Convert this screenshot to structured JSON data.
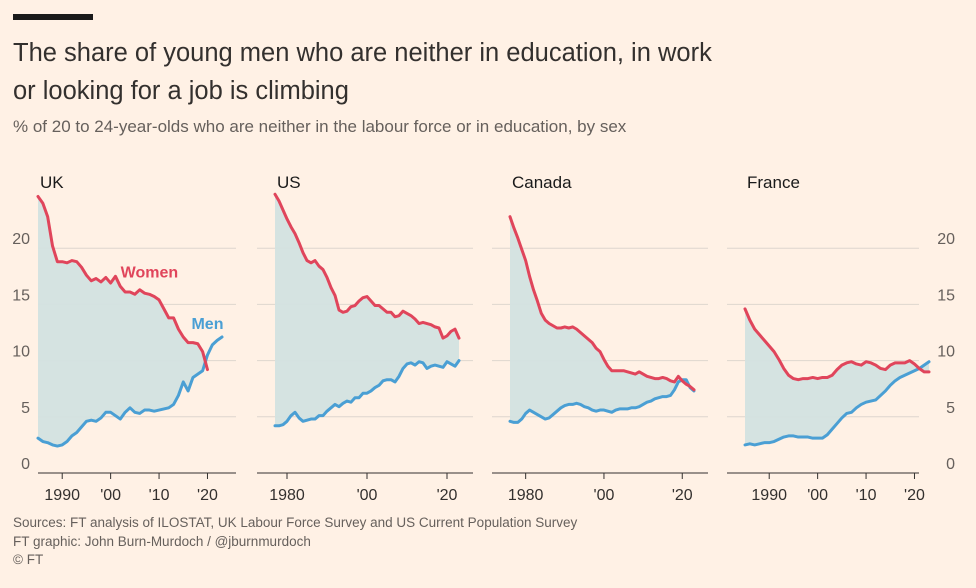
{
  "title_line1": "The share of young men who are neither in education, in work",
  "title_line2": "or looking for a job is climbing",
  "subtitle": "% of 20 to 24-year-olds who are neither in the labour force or in education, by sex",
  "footer": {
    "sources": "Sources: FT analysis of ILOSTAT, UK Labour Force Survey and US Current Population Survey",
    "credit": "FT graphic: John Burn-Murdoch / @jburnmurdoch",
    "copyright": "© FT"
  },
  "colors": {
    "women": "#E0455B",
    "men": "#4A9FD4",
    "fill": "#D3E2E0",
    "background": "#FFF1E5",
    "grid": "#DED6CE"
  },
  "chart_data": [
    {
      "type": "line",
      "title": "UK",
      "xlim": [
        1985,
        2023
      ],
      "ylim": [
        0,
        25
      ],
      "y_ticks": [
        0,
        5,
        10,
        15,
        20
      ],
      "y_tick_labels": [
        "0",
        "5",
        "10",
        "15",
        "20"
      ],
      "x_ticks": [
        1990,
        2000,
        2010,
        2020
      ],
      "x_tick_labels": [
        "1990",
        "'00",
        "'10",
        "'20"
      ],
      "annotations": [
        {
          "text": "Women",
          "series": "Women",
          "x": 2008,
          "y": 17.4
        },
        {
          "text": "Men",
          "series": "Men",
          "x": 2020,
          "y": 12.8
        }
      ],
      "series": [
        {
          "name": "Women",
          "x": [
            1985,
            1986,
            1987,
            1988,
            1989,
            1990,
            1991,
            1992,
            1993,
            1994,
            1995,
            1996,
            1997,
            1998,
            1999,
            2000,
            2001,
            2002,
            2003,
            2004,
            2005,
            2006,
            2007,
            2008,
            2009,
            2010,
            2011,
            2012,
            2013,
            2014,
            2015,
            2016,
            2017,
            2018,
            2019,
            2020
          ],
          "y": [
            24.6,
            24,
            22.8,
            20.2,
            18.8,
            18.8,
            18.7,
            18.9,
            18.8,
            18.3,
            17.6,
            17.1,
            17.3,
            17,
            17.4,
            16.9,
            17.5,
            16.6,
            16.1,
            16.1,
            15.9,
            16.3,
            16,
            15.9,
            15.7,
            15.4,
            14.6,
            13.8,
            13.8,
            12.8,
            12.1,
            11.6,
            11.6,
            11.5,
            10.8,
            9.2
          ]
        },
        {
          "name": "Men",
          "x": [
            1985,
            1986,
            1987,
            1988,
            1989,
            1990,
            1991,
            1992,
            1993,
            1994,
            1995,
            1996,
            1997,
            1998,
            1999,
            2000,
            2001,
            2002,
            2003,
            2004,
            2005,
            2006,
            2007,
            2008,
            2009,
            2010,
            2011,
            2012,
            2013,
            2014,
            2015,
            2016,
            2017,
            2018,
            2019,
            2020,
            2021,
            2022,
            2023
          ],
          "y": [
            3.1,
            2.8,
            2.7,
            2.5,
            2.4,
            2.5,
            2.8,
            3.3,
            3.6,
            4.1,
            4.6,
            4.7,
            4.6,
            4.9,
            5.4,
            5.4,
            5.1,
            4.8,
            5.4,
            5.8,
            5.4,
            5.3,
            5.6,
            5.6,
            5.5,
            5.6,
            5.7,
            5.8,
            6.1,
            6.9,
            8.1,
            7.3,
            8.5,
            8.8,
            9.1,
            10.5,
            11.4,
            11.8,
            12.1
          ]
        }
      ]
    },
    {
      "type": "line",
      "title": "US",
      "xlim": [
        1977,
        2023
      ],
      "ylim": [
        0,
        25
      ],
      "y_ticks": [
        0,
        5,
        10,
        15,
        20
      ],
      "x_ticks": [
        1980,
        2000,
        2020
      ],
      "x_tick_labels": [
        "1980",
        "'00",
        "'20"
      ],
      "series": [
        {
          "name": "Women",
          "x": [
            1977,
            1978,
            1979,
            1980,
            1981,
            1982,
            1983,
            1984,
            1985,
            1986,
            1987,
            1988,
            1989,
            1990,
            1991,
            1992,
            1993,
            1994,
            1995,
            1996,
            1997,
            1998,
            1999,
            2000,
            2001,
            2002,
            2003,
            2004,
            2005,
            2006,
            2007,
            2008,
            2009,
            2010,
            2011,
            2012,
            2013,
            2014,
            2015,
            2016,
            2017,
            2018,
            2019,
            2020,
            2021,
            2022,
            2023
          ],
          "y": [
            24.8,
            24.2,
            23.4,
            22.6,
            21.9,
            21.3,
            20.5,
            19.6,
            18.9,
            18.7,
            18.9,
            18.4,
            18.1,
            17.4,
            16.5,
            15.8,
            14.5,
            14.3,
            14.4,
            14.8,
            14.9,
            15.3,
            15.6,
            15.7,
            15.3,
            14.9,
            14.9,
            14.6,
            14.3,
            14.3,
            13.9,
            14,
            14.4,
            14.2,
            14,
            13.7,
            13.3,
            13.4,
            13.3,
            13.2,
            13,
            12.9,
            12,
            12.2,
            12.6,
            12.8,
            12
          ]
        },
        {
          "name": "Men",
          "x": [
            1977,
            1978,
            1979,
            1980,
            1981,
            1982,
            1983,
            1984,
            1985,
            1986,
            1987,
            1988,
            1989,
            1990,
            1991,
            1992,
            1993,
            1994,
            1995,
            1996,
            1997,
            1998,
            1999,
            2000,
            2001,
            2002,
            2003,
            2004,
            2005,
            2006,
            2007,
            2008,
            2009,
            2010,
            2011,
            2012,
            2013,
            2014,
            2015,
            2016,
            2017,
            2018,
            2019,
            2020,
            2021,
            2022,
            2023
          ],
          "y": [
            4.2,
            4.2,
            4.3,
            4.6,
            5.1,
            5.4,
            4.9,
            4.6,
            4.7,
            4.8,
            4.8,
            5.1,
            5.1,
            5.5,
            5.8,
            6.1,
            5.9,
            6.2,
            6.4,
            6.3,
            6.7,
            6.7,
            7.1,
            7.1,
            7.3,
            7.6,
            7.8,
            8.2,
            8.3,
            8.3,
            8.1,
            8.6,
            9.3,
            9.7,
            9.8,
            9.6,
            9.9,
            9.8,
            9.3,
            9.5,
            9.6,
            9.5,
            9.4,
            9.9,
            9.7,
            9.5,
            10
          ]
        }
      ]
    },
    {
      "type": "line",
      "title": "Canada",
      "xlim": [
        1976,
        2023
      ],
      "ylim": [
        0,
        25
      ],
      "y_ticks": [
        0,
        5,
        10,
        15,
        20
      ],
      "x_ticks": [
        1980,
        2000,
        2020
      ],
      "x_tick_labels": [
        "1980",
        "'00",
        "'20"
      ],
      "series": [
        {
          "name": "Women",
          "x": [
            1976,
            1977,
            1978,
            1979,
            1980,
            1981,
            1982,
            1983,
            1984,
            1985,
            1986,
            1987,
            1988,
            1989,
            1990,
            1991,
            1992,
            1993,
            1994,
            1995,
            1996,
            1997,
            1998,
            1999,
            2000,
            2001,
            2002,
            2003,
            2004,
            2005,
            2006,
            2007,
            2008,
            2009,
            2010,
            2011,
            2012,
            2013,
            2014,
            2015,
            2016,
            2017,
            2018,
            2019,
            2020,
            2021,
            2022,
            2023
          ],
          "y": [
            22.8,
            21.8,
            20.9,
            19.9,
            18.9,
            17.5,
            16.3,
            15.3,
            14.2,
            13.6,
            13.3,
            13.1,
            12.9,
            12.9,
            13,
            12.9,
            13,
            12.8,
            12.5,
            12.2,
            11.9,
            11.6,
            11.1,
            10.8,
            10.1,
            9.5,
            9.1,
            9.1,
            9.1,
            9.1,
            9,
            8.9,
            8.8,
            9,
            8.8,
            8.6,
            8.5,
            8.4,
            8.4,
            8.5,
            8.4,
            8.2,
            8.1,
            8.6,
            8.2,
            7.9,
            7.7,
            7.4
          ]
        },
        {
          "name": "Men",
          "x": [
            1976,
            1977,
            1978,
            1979,
            1980,
            1981,
            1982,
            1983,
            1984,
            1985,
            1986,
            1987,
            1988,
            1989,
            1990,
            1991,
            1992,
            1993,
            1994,
            1995,
            1996,
            1997,
            1998,
            1999,
            2000,
            2001,
            2002,
            2003,
            2004,
            2005,
            2006,
            2007,
            2008,
            2009,
            2010,
            2011,
            2012,
            2013,
            2014,
            2015,
            2016,
            2017,
            2018,
            2019,
            2020,
            2021,
            2022,
            2023
          ],
          "y": [
            4.6,
            4.5,
            4.5,
            4.8,
            5.3,
            5.6,
            5.4,
            5.2,
            5,
            4.8,
            4.9,
            5.2,
            5.5,
            5.8,
            6,
            6.1,
            6.1,
            6.2,
            6.1,
            5.9,
            5.8,
            5.6,
            5.5,
            5.6,
            5.6,
            5.5,
            5.4,
            5.6,
            5.7,
            5.7,
            5.7,
            5.8,
            5.8,
            5.9,
            6.1,
            6.3,
            6.4,
            6.6,
            6.7,
            6.8,
            6.8,
            6.9,
            7.4,
            8.1,
            8.3,
            8.3,
            7.6,
            7.3
          ]
        }
      ]
    },
    {
      "type": "line",
      "title": "France",
      "xlim": [
        1985,
        2023
      ],
      "ylim": [
        0,
        25
      ],
      "y_ticks": [
        0,
        5,
        10,
        15,
        20
      ],
      "y_tick_labels": [
        "0",
        "5",
        "10",
        "15",
        "20"
      ],
      "y_axis_side": "right",
      "x_ticks": [
        1990,
        2000,
        2010,
        2020
      ],
      "x_tick_labels": [
        "1990",
        "'00",
        "'10",
        "'20"
      ],
      "series": [
        {
          "name": "Women",
          "x": [
            1985,
            1986,
            1987,
            1988,
            1989,
            1990,
            1991,
            1992,
            1993,
            1994,
            1995,
            1996,
            1997,
            1998,
            1999,
            2000,
            2001,
            2002,
            2003,
            2004,
            2005,
            2006,
            2007,
            2008,
            2009,
            2010,
            2011,
            2012,
            2013,
            2014,
            2015,
            2016,
            2017,
            2018,
            2019,
            2020,
            2021,
            2022,
            2023
          ],
          "y": [
            14.6,
            13.6,
            12.8,
            12.3,
            11.8,
            11.3,
            10.8,
            10.1,
            9.3,
            8.7,
            8.4,
            8.3,
            8.4,
            8.4,
            8.5,
            8.4,
            8.5,
            8.5,
            8.7,
            9.2,
            9.6,
            9.8,
            9.9,
            9.7,
            9.6,
            9.9,
            9.8,
            9.6,
            9.3,
            9.2,
            9.6,
            9.8,
            9.8,
            9.8,
            10,
            9.7,
            9.3,
            9,
            9
          ]
        },
        {
          "name": "Men",
          "x": [
            1985,
            1986,
            1987,
            1988,
            1989,
            1990,
            1991,
            1992,
            1993,
            1994,
            1995,
            1996,
            1997,
            1998,
            1999,
            2000,
            2001,
            2002,
            2003,
            2004,
            2005,
            2006,
            2007,
            2008,
            2009,
            2010,
            2011,
            2012,
            2013,
            2014,
            2015,
            2016,
            2017,
            2018,
            2019,
            2020,
            2021,
            2022,
            2023
          ],
          "y": [
            2.5,
            2.6,
            2.5,
            2.6,
            2.7,
            2.7,
            2.8,
            3,
            3.2,
            3.3,
            3.3,
            3.2,
            3.2,
            3.2,
            3.1,
            3.1,
            3.1,
            3.4,
            3.9,
            4.4,
            4.9,
            5.3,
            5.4,
            5.8,
            6.1,
            6.3,
            6.4,
            6.5,
            6.9,
            7.3,
            7.8,
            8.2,
            8.5,
            8.7,
            8.9,
            9.1,
            9.3,
            9.6,
            9.9
          ]
        }
      ]
    }
  ]
}
